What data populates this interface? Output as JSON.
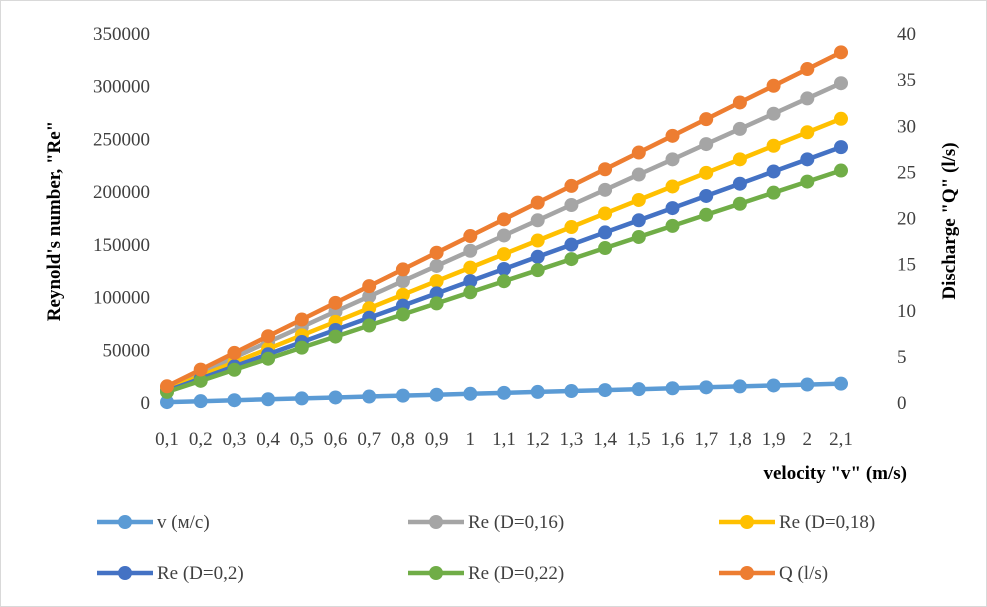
{
  "chart_data": {
    "type": "line",
    "title": "",
    "xlabel": "velocity \"v\" (m/s)",
    "ylabel": "Reynold's number, \"Re\"",
    "y2label": "Discharge \"Q\" (l/s)",
    "categories": [
      "0,1",
      "0,2",
      "0,3",
      "0,4",
      "0,5",
      "0,6",
      "0,7",
      "0,8",
      "0,9",
      "1",
      "1,1",
      "1,2",
      "1,3",
      "1,4",
      "1,5",
      "1,6",
      "1,7",
      "1,8",
      "1,9",
      "2",
      "2,1"
    ],
    "ylim": [
      0,
      350000
    ],
    "yticks": [
      "0",
      "50000",
      "100000",
      "150000",
      "200000",
      "250000",
      "300000",
      "350000"
    ],
    "y2lim": [
      0,
      40
    ],
    "y2ticks": [
      "0",
      "5",
      "10",
      "15",
      "20",
      "25",
      "30",
      "35",
      "40"
    ],
    "grid": false,
    "legend_position": "bottom",
    "series": [
      {
        "name": "v (м/с)",
        "axis": "right",
        "color": "#5b9bd5",
        "values": [
          0.1,
          0.2,
          0.3,
          0.4,
          0.5,
          0.6,
          0.7,
          0.8,
          0.9,
          1.0,
          1.1,
          1.2,
          1.3,
          1.4,
          1.5,
          1.6,
          1.7,
          1.8,
          1.9,
          2.0,
          2.1
        ]
      },
      {
        "name": "Re (D=0,16)",
        "axis": "left",
        "color": "#a5a5a5",
        "values": [
          14400,
          28900,
          43300,
          57800,
          72200,
          86700,
          101100,
          115600,
          130000,
          144400,
          158900,
          173300,
          187800,
          202200,
          216700,
          231100,
          245600,
          260000,
          274400,
          288900,
          303300
        ]
      },
      {
        "name": "Re (D=0,18)",
        "axis": "left",
        "color": "#ffc000",
        "values": [
          12800,
          25700,
          38500,
          51400,
          64200,
          77000,
          89900,
          102700,
          115600,
          128400,
          141200,
          154100,
          166900,
          179800,
          192600,
          205400,
          218300,
          231100,
          244000,
          256800,
          269600
        ]
      },
      {
        "name": "Re (D=0,2)",
        "axis": "left",
        "color": "#4472c4",
        "values": [
          11600,
          23100,
          34700,
          46200,
          57800,
          69300,
          80900,
          92400,
          104000,
          115600,
          127100,
          138700,
          150200,
          161800,
          173300,
          184900,
          196400,
          208000,
          219600,
          231100,
          242700
        ]
      },
      {
        "name": "Re (D=0,22)",
        "axis": "left",
        "color": "#70ad47",
        "values": [
          10500,
          21000,
          31500,
          42000,
          52500,
          63000,
          73500,
          84000,
          94500,
          105000,
          115500,
          126000,
          136500,
          147000,
          157500,
          168000,
          178500,
          189000,
          199500,
          210000,
          220500
        ]
      },
      {
        "name": "Q (l/s)",
        "axis": "right",
        "color": "#ed7d31",
        "values": [
          1.81,
          3.62,
          5.43,
          7.24,
          9.05,
          10.86,
          12.67,
          14.48,
          16.29,
          18.1,
          19.91,
          21.72,
          23.53,
          25.34,
          27.15,
          28.96,
          30.77,
          32.58,
          34.39,
          36.2,
          38.01
        ]
      }
    ]
  }
}
